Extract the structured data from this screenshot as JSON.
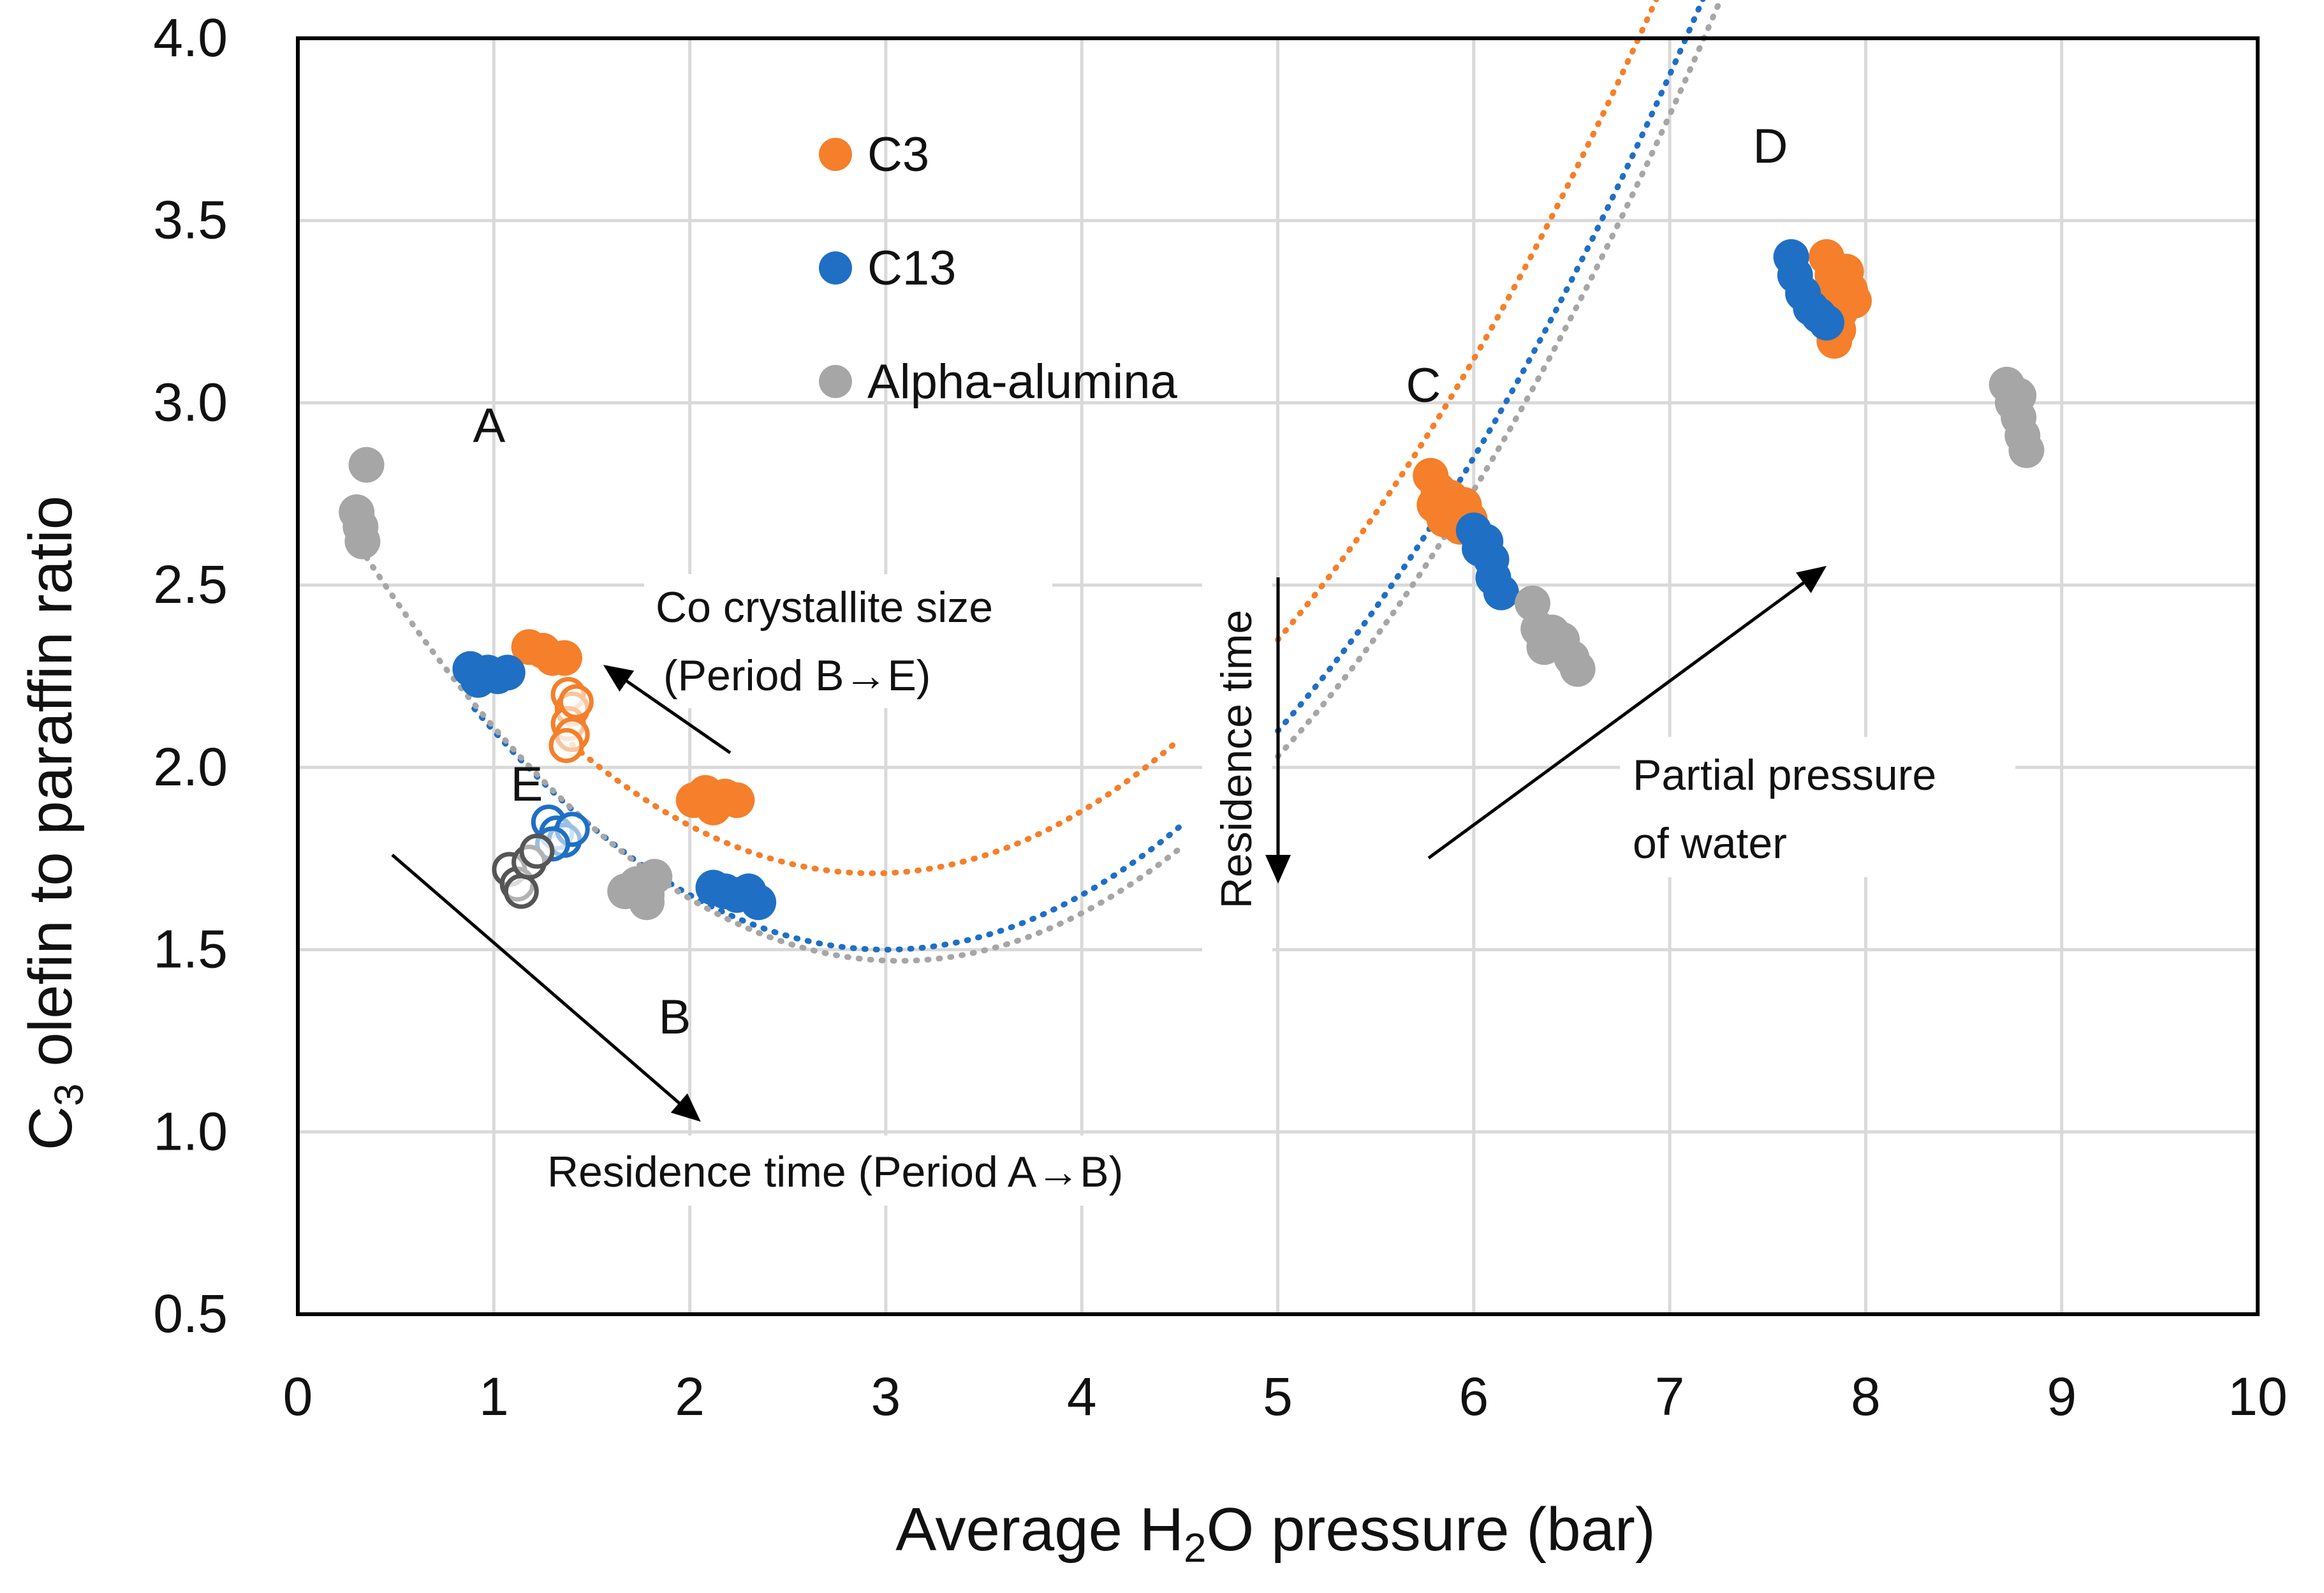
{
  "chart_data": {
    "type": "scatter",
    "title": "",
    "xlabel": "Average H2O pressure (bar)",
    "ylabel": "C3 olefin to paraffin ratio",
    "xlim": [
      0,
      10
    ],
    "ylim": [
      0.5,
      4.0
    ],
    "xticks": [
      "0",
      "1",
      "2",
      "3",
      "4",
      "5",
      "6",
      "7",
      "8",
      "9",
      "10"
    ],
    "yticks": [
      "0.5",
      "1.0",
      "1.5",
      "2.0",
      "2.5",
      "3.0",
      "3.5",
      "4.0"
    ],
    "grid": true,
    "legend_position": "top-center",
    "series": [
      {
        "name": "C3",
        "color": "#f57f2a",
        "points": [
          [
            1.18,
            2.33
          ],
          [
            1.25,
            2.32
          ],
          [
            1.3,
            2.3
          ],
          [
            1.36,
            2.3
          ],
          [
            2.02,
            1.91
          ],
          [
            2.08,
            1.93
          ],
          [
            2.12,
            1.89
          ],
          [
            2.18,
            1.92
          ],
          [
            2.24,
            1.91
          ],
          [
            5.78,
            2.8
          ],
          [
            5.8,
            2.72
          ],
          [
            5.82,
            2.76
          ],
          [
            5.85,
            2.68
          ],
          [
            5.88,
            2.74
          ],
          [
            5.9,
            2.7
          ],
          [
            5.93,
            2.66
          ],
          [
            5.95,
            2.72
          ],
          [
            5.98,
            2.68
          ],
          [
            7.8,
            3.4
          ],
          [
            7.83,
            3.35
          ],
          [
            7.85,
            3.3
          ],
          [
            7.87,
            3.25
          ],
          [
            7.9,
            3.36
          ],
          [
            7.92,
            3.31
          ],
          [
            7.94,
            3.28
          ],
          [
            7.86,
            3.2
          ],
          [
            7.84,
            3.17
          ]
        ],
        "open_points": [
          [
            1.38,
            2.2
          ],
          [
            1.4,
            2.16
          ],
          [
            1.38,
            2.12
          ],
          [
            1.4,
            2.09
          ],
          [
            1.37,
            2.06
          ],
          [
            1.42,
            2.18
          ]
        ]
      },
      {
        "name": "C13",
        "color": "#1f6fc5",
        "points": [
          [
            0.88,
            2.27
          ],
          [
            0.92,
            2.24
          ],
          [
            0.97,
            2.26
          ],
          [
            1.02,
            2.25
          ],
          [
            1.07,
            2.26
          ],
          [
            2.12,
            1.67
          ],
          [
            2.18,
            1.66
          ],
          [
            2.24,
            1.65
          ],
          [
            2.3,
            1.66
          ],
          [
            2.35,
            1.63
          ],
          [
            6.0,
            2.65
          ],
          [
            6.03,
            2.6
          ],
          [
            6.06,
            2.62
          ],
          [
            6.09,
            2.57
          ],
          [
            6.1,
            2.52
          ],
          [
            6.14,
            2.48
          ],
          [
            7.62,
            3.4
          ],
          [
            7.64,
            3.35
          ],
          [
            7.68,
            3.3
          ],
          [
            7.72,
            3.26
          ],
          [
            7.76,
            3.24
          ],
          [
            7.8,
            3.22
          ]
        ],
        "open_points": [
          [
            1.28,
            1.85
          ],
          [
            1.32,
            1.82
          ],
          [
            1.36,
            1.8
          ],
          [
            1.4,
            1.83
          ],
          [
            1.3,
            1.79
          ]
        ]
      },
      {
        "name": "Alpha-alumina",
        "color": "#a6a6a6",
        "points": [
          [
            0.35,
            2.83
          ],
          [
            0.3,
            2.7
          ],
          [
            0.32,
            2.66
          ],
          [
            0.33,
            2.62
          ],
          [
            1.67,
            1.66
          ],
          [
            1.73,
            1.68
          ],
          [
            1.78,
            1.65
          ],
          [
            1.82,
            1.7
          ],
          [
            1.78,
            1.63
          ],
          [
            6.3,
            2.45
          ],
          [
            6.33,
            2.38
          ],
          [
            6.36,
            2.33
          ],
          [
            6.4,
            2.37
          ],
          [
            6.45,
            2.35
          ],
          [
            6.5,
            2.3
          ],
          [
            6.53,
            2.27
          ],
          [
            8.72,
            3.05
          ],
          [
            8.75,
            3.0
          ],
          [
            8.78,
            2.96
          ],
          [
            8.8,
            2.91
          ],
          [
            8.82,
            2.87
          ],
          [
            8.78,
            3.02
          ]
        ],
        "open_points": [
          [
            1.08,
            1.72
          ],
          [
            1.12,
            1.68
          ],
          [
            1.14,
            1.66
          ],
          [
            1.18,
            1.74
          ],
          [
            1.22,
            1.77
          ]
        ]
      }
    ],
    "trendlines": [
      {
        "series": "C3",
        "color": "#f57f2a",
        "x_start": 1.4,
        "x_end": 7.9,
        "coefficients": [
          3.0,
          -0.88,
          0.15
        ],
        "x_break": [
          4.5,
          5.0
        ]
      },
      {
        "series": "C13",
        "color": "#1f6fc5",
        "x_start": 0.9,
        "x_end": 7.8,
        "coefficients": [
          2.85,
          -0.9,
          0.15
        ],
        "x_break": [
          4.5,
          5.0
        ]
      },
      {
        "series": "Alpha-alumina",
        "color": "#a6a6a6",
        "x_start": 0.35,
        "x_end": 8.8,
        "coefficients": [
          2.88,
          -0.92,
          0.15
        ],
        "x_break": [
          4.5,
          5.0
        ]
      }
    ],
    "annotations": {
      "region_labels": [
        "A",
        "B",
        "C",
        "D",
        "E"
      ],
      "co_crystallite_line1": "Co crystallite size",
      "co_crystallite_line2": "(Period B→E)",
      "residence_time_ab": "Residence time (Period A→B)",
      "residence_time_vertical": "Residence time",
      "partial_pressure_line1": "Partial pressure",
      "partial_pressure_line2": "of water"
    }
  }
}
